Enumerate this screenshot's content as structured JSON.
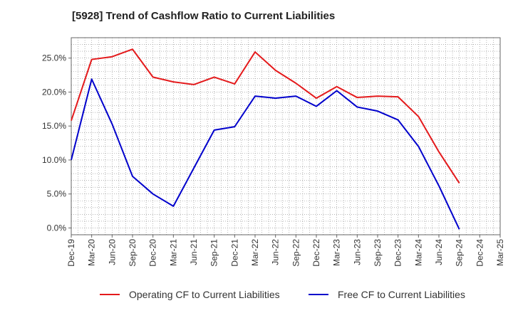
{
  "chart_data": {
    "type": "line",
    "title": "[5928]  Trend of Cashflow Ratio to Current Liabilities",
    "xlabel": "",
    "ylabel": "",
    "categories": [
      "Dec-19",
      "Mar-20",
      "Jun-20",
      "Sep-20",
      "Dec-20",
      "Mar-21",
      "Jun-21",
      "Sep-21",
      "Dec-21",
      "Mar-22",
      "Jun-22",
      "Sep-22",
      "Dec-22",
      "Mar-23",
      "Jun-23",
      "Sep-23",
      "Dec-23",
      "Mar-24",
      "Jun-24",
      "Sep-24",
      "Dec-24",
      "Mar-25"
    ],
    "y_ticks": [
      "0.0%",
      "5.0%",
      "10.0%",
      "15.0%",
      "20.0%",
      "25.0%"
    ],
    "ylim": [
      -1.0,
      28.0
    ],
    "grid": true,
    "legend_position": "bottom",
    "series": [
      {
        "name": "Operating CF to Current Liabilities",
        "color": "#e41a1c",
        "values": [
          15.8,
          24.8,
          25.2,
          26.3,
          22.2,
          21.5,
          21.1,
          22.2,
          21.2,
          25.9,
          23.2,
          21.3,
          19.1,
          20.8,
          19.2,
          19.4,
          19.3,
          16.4,
          11.2,
          6.6,
          null,
          null
        ]
      },
      {
        "name": "Free CF to Current Liabilities",
        "color": "#0000cc",
        "values": [
          10.0,
          21.9,
          15.3,
          7.6,
          5.0,
          3.2,
          8.8,
          14.4,
          14.9,
          19.4,
          19.1,
          19.4,
          17.9,
          20.2,
          17.8,
          17.2,
          15.9,
          12.0,
          6.2,
          -0.2,
          null,
          null
        ]
      }
    ]
  }
}
